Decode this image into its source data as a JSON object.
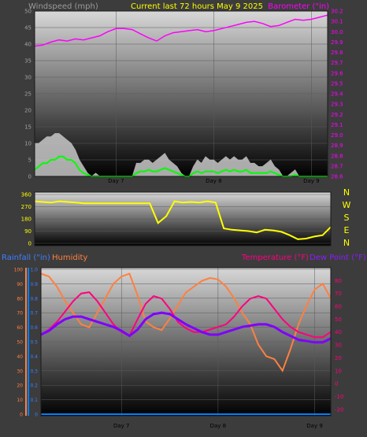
{
  "header": {
    "left_label": "Windspeed (mph)",
    "center_label": "Current last 72 hours May 9 2025",
    "right_label": "Barometer (\"in)"
  },
  "bottom_header": {
    "rainfall_label": "Rainfall (\"in)",
    "humidity_label": "Humidity",
    "temperature_label": "Temperature (°F)",
    "dewpoint_label": "Dew Point (°F)"
  },
  "colors": {
    "background": "#3c3c3c",
    "wind_avg": "#00ff00",
    "wind_gust": "#c8c8c8",
    "barometer": "#ff00ff",
    "wind_direction": "#ffff00",
    "rainfall": "#0080ff",
    "humidity": "#ff8040",
    "temperature": "#ff0080",
    "dew_point": "#8000ff",
    "title_yellow": "#ffff00"
  },
  "chart_data": [
    {
      "type": "line",
      "name": "wind-barometer",
      "x_labels": [
        "Day 7",
        "Day 8",
        "Day 9"
      ],
      "x_range_hours": [
        0,
        72
      ],
      "day_marks_hours": [
        20,
        44,
        68
      ],
      "left_axis": {
        "label": "Windspeed (mph)",
        "ylim": [
          0,
          50
        ],
        "ticks": [
          0,
          5,
          10,
          15,
          20,
          25,
          30,
          35,
          40,
          45,
          50
        ]
      },
      "right_axis": {
        "label": "Barometer (\"in)",
        "ylim": [
          28.6,
          30.2
        ],
        "ticks": [
          "28.6",
          "28.7",
          "28.8",
          "28.9",
          "29.0",
          "29.1",
          "29.2",
          "29.3",
          "29.4",
          "29.5",
          "29.6",
          "29.7",
          "29.8",
          "29.9",
          "30.0",
          "30.1",
          "30.2"
        ]
      },
      "series": [
        {
          "name": "Wind gust",
          "axis": "left",
          "x": [
            0,
            1,
            2,
            3,
            4,
            5,
            6,
            7,
            8,
            9,
            10,
            11,
            12,
            13,
            14,
            15,
            16,
            17,
            18,
            19,
            20,
            21,
            22,
            23,
            24,
            25,
            26,
            27,
            28,
            29,
            30,
            31,
            32,
            33,
            34,
            35,
            36,
            37,
            38,
            39,
            40,
            41,
            42,
            43,
            44,
            45,
            46,
            47,
            48,
            49,
            50,
            51,
            52,
            53,
            54,
            55,
            56,
            57,
            58,
            59,
            60,
            61,
            62,
            63,
            64,
            65,
            66,
            67,
            68,
            69,
            70,
            71,
            72
          ],
          "y": [
            10,
            10,
            11,
            12,
            12,
            13,
            13,
            12,
            11,
            10,
            8,
            5,
            3,
            1,
            0,
            1,
            0,
            0,
            0,
            0,
            0,
            0,
            0,
            0,
            0,
            4,
            4,
            5,
            5,
            4,
            5,
            6,
            7,
            5,
            4,
            3,
            1,
            0,
            0,
            3,
            5,
            4,
            6,
            5,
            5,
            4,
            5,
            6,
            5,
            6,
            5,
            5,
            6,
            4,
            4,
            3,
            3,
            4,
            5,
            3,
            2,
            0,
            0,
            1,
            2,
            0,
            0,
            0,
            0,
            0,
            0,
            0,
            0
          ]
        },
        {
          "name": "Wind average",
          "axis": "left",
          "x": [
            0,
            1,
            2,
            3,
            4,
            5,
            6,
            7,
            8,
            9,
            10,
            11,
            12,
            13,
            14,
            15,
            16,
            17,
            18,
            19,
            20,
            21,
            22,
            23,
            24,
            25,
            26,
            27,
            28,
            29,
            30,
            31,
            32,
            33,
            34,
            35,
            36,
            37,
            38,
            39,
            40,
            41,
            42,
            43,
            44,
            45,
            46,
            47,
            48,
            49,
            50,
            51,
            52,
            53,
            54,
            55,
            56,
            57,
            58,
            59,
            60,
            61,
            62,
            63,
            64,
            65,
            66,
            67,
            68,
            69,
            70,
            71,
            72
          ],
          "y": [
            2,
            3,
            4,
            4,
            5,
            5,
            6,
            6,
            5,
            5,
            4,
            2,
            1,
            0.5,
            0,
            0,
            0,
            0,
            0,
            0,
            0,
            0,
            0,
            0,
            0,
            1,
            1.5,
            1.5,
            2,
            1.5,
            1.5,
            2,
            2.5,
            2,
            1.5,
            1,
            0.5,
            0,
            0,
            1,
            1.5,
            1,
            1.5,
            1.5,
            1.5,
            1,
            1.5,
            2,
            1.5,
            2,
            1.5,
            1.5,
            2,
            1,
            1,
            1,
            1,
            1,
            1.5,
            1,
            0.5,
            0,
            0,
            0,
            0.5,
            0,
            0,
            0,
            0,
            0,
            0,
            0,
            0
          ]
        },
        {
          "name": "Barometer",
          "axis": "right",
          "x": [
            0,
            2,
            4,
            6,
            8,
            10,
            12,
            14,
            16,
            18,
            20,
            22,
            24,
            26,
            28,
            30,
            32,
            34,
            36,
            38,
            40,
            42,
            44,
            46,
            48,
            50,
            52,
            54,
            56,
            58,
            60,
            62,
            64,
            66,
            68,
            70,
            72
          ],
          "y": [
            29.86,
            29.87,
            29.9,
            29.92,
            29.91,
            29.93,
            29.92,
            29.94,
            29.96,
            30.0,
            30.03,
            30.03,
            30.02,
            29.98,
            29.94,
            29.91,
            29.96,
            29.99,
            30.0,
            30.01,
            30.02,
            30.0,
            30.01,
            30.03,
            30.05,
            30.07,
            30.09,
            30.1,
            30.08,
            30.05,
            30.06,
            30.09,
            30.12,
            30.11,
            30.12,
            30.14,
            30.16
          ]
        }
      ]
    },
    {
      "type": "line",
      "name": "wind-direction",
      "x_labels": [
        "Day 7",
        "Day 8",
        "Day 9"
      ],
      "x_range_hours": [
        0,
        72
      ],
      "left_axis": {
        "ylim": [
          0,
          360
        ],
        "ticks": [
          0,
          90,
          180,
          270,
          360
        ]
      },
      "compass_labels": [
        "N",
        "W",
        "S",
        "E",
        "N"
      ],
      "series": [
        {
          "name": "Wind direction",
          "x": [
            0,
            2,
            4,
            6,
            8,
            10,
            12,
            14,
            16,
            18,
            20,
            22,
            24,
            26,
            28,
            30,
            32,
            34,
            36,
            38,
            40,
            42,
            44,
            46,
            48,
            50,
            52,
            54,
            56,
            58,
            60,
            62,
            64,
            66,
            68,
            70,
            72
          ],
          "y": [
            310,
            305,
            300,
            310,
            305,
            300,
            295,
            295,
            295,
            295,
            295,
            295,
            295,
            295,
            295,
            150,
            200,
            310,
            300,
            305,
            300,
            310,
            300,
            110,
            100,
            95,
            90,
            80,
            100,
            95,
            85,
            60,
            30,
            35,
            50,
            60,
            120
          ]
        }
      ]
    },
    {
      "type": "line",
      "name": "temperature-humidity-rain",
      "x_labels": [
        "Day 7",
        "Day 8",
        "Day 9"
      ],
      "x_range_hours": [
        0,
        72
      ],
      "left_axis": {
        "label": "Humidity",
        "ylim": [
          0,
          100
        ],
        "ticks": [
          0,
          10,
          20,
          30,
          40,
          50,
          60,
          70,
          80,
          90,
          100
        ]
      },
      "rain_axis": {
        "label": "Rainfall (\"in)",
        "ylim": [
          0,
          1.0
        ],
        "ticks": [
          "0",
          "0.1",
          "0.2",
          "0.3",
          "0.4",
          "0.5",
          "0.6",
          "0.7",
          "0.8",
          "0.9",
          "1.0"
        ]
      },
      "right_axis": {
        "label": "Temperature (°F)",
        "ylim": [
          -25,
          90
        ],
        "ticks": [
          -20,
          -10,
          0,
          10,
          20,
          30,
          40,
          50,
          60,
          70,
          80
        ]
      },
      "series": [
        {
          "name": "Humidity",
          "axis": "left",
          "x": [
            0,
            2,
            4,
            6,
            8,
            10,
            12,
            14,
            16,
            18,
            20,
            22,
            24,
            26,
            28,
            30,
            32,
            34,
            36,
            38,
            40,
            42,
            44,
            46,
            48,
            50,
            52,
            54,
            56,
            58,
            60,
            62,
            64,
            66,
            68,
            70,
            72
          ],
          "y": [
            97,
            95,
            88,
            78,
            70,
            62,
            60,
            70,
            80,
            90,
            95,
            97,
            82,
            64,
            60,
            58,
            66,
            75,
            84,
            88,
            92,
            94,
            93,
            88,
            80,
            70,
            62,
            48,
            40,
            38,
            30,
            45,
            62,
            75,
            86,
            90,
            80
          ]
        },
        {
          "name": "Temperature",
          "axis": "right",
          "x": [
            0,
            2,
            4,
            6,
            8,
            10,
            12,
            14,
            16,
            18,
            20,
            22,
            24,
            26,
            28,
            30,
            32,
            34,
            36,
            38,
            40,
            42,
            44,
            46,
            48,
            50,
            52,
            54,
            56,
            58,
            60,
            62,
            64,
            66,
            68,
            70,
            72
          ],
          "y": [
            38,
            42,
            48,
            56,
            64,
            70,
            71,
            64,
            55,
            46,
            40,
            37,
            50,
            62,
            68,
            66,
            58,
            48,
            43,
            40,
            40,
            42,
            44,
            46,
            52,
            60,
            66,
            68,
            66,
            58,
            50,
            44,
            40,
            38,
            36,
            36,
            40
          ]
        },
        {
          "name": "Dew Point",
          "axis": "right",
          "x": [
            0,
            2,
            4,
            6,
            8,
            10,
            12,
            14,
            16,
            18,
            20,
            22,
            24,
            26,
            28,
            30,
            32,
            34,
            36,
            38,
            40,
            42,
            44,
            46,
            48,
            50,
            52,
            54,
            56,
            58,
            60,
            62,
            64,
            66,
            68,
            70,
            72
          ],
          "y": [
            38,
            41,
            46,
            50,
            52,
            52,
            50,
            48,
            46,
            44,
            41,
            37,
            42,
            50,
            54,
            55,
            54,
            50,
            46,
            43,
            40,
            38,
            38,
            40,
            42,
            44,
            45,
            46,
            46,
            44,
            40,
            37,
            34,
            33,
            32,
            32,
            35
          ]
        },
        {
          "name": "Rainfall",
          "axis": "rain",
          "x": [
            0,
            72
          ],
          "y": [
            0,
            0
          ]
        }
      ]
    }
  ]
}
